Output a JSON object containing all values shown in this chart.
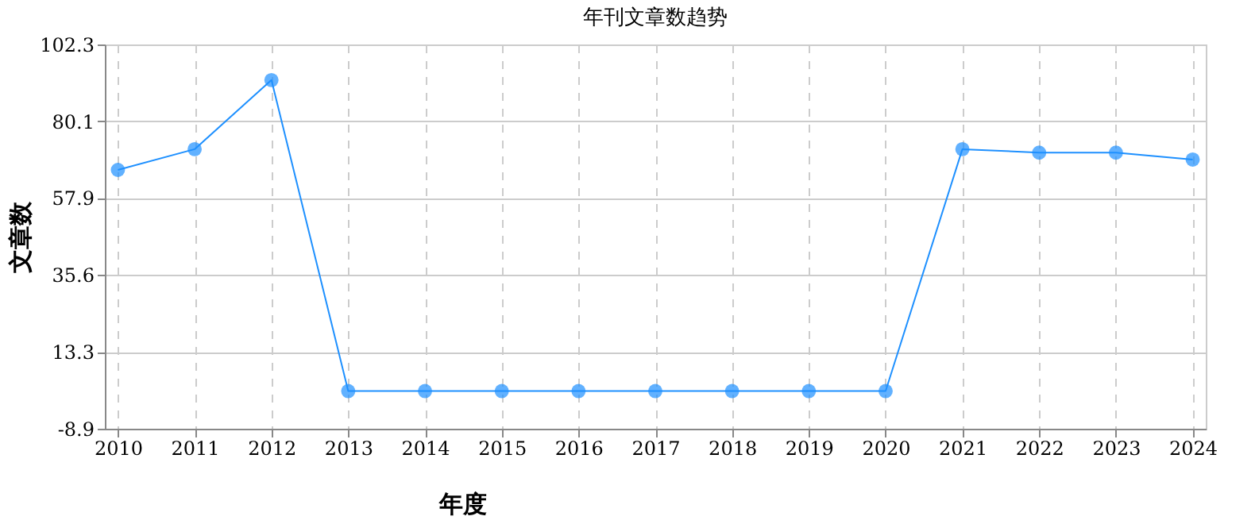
{
  "chart_data": {
    "type": "line",
    "title": "年刊文章数趋势",
    "xlabel": "年度",
    "ylabel": "文章数",
    "categories": [
      "2010",
      "2011",
      "2012",
      "2013",
      "2014",
      "2015",
      "2016",
      "2017",
      "2018",
      "2019",
      "2020",
      "2021",
      "2022",
      "2023",
      "2024"
    ],
    "series": [
      {
        "color": "#1e90ff",
        "values": [
          66,
          72,
          92,
          2,
          2,
          2,
          2,
          2,
          2,
          2,
          2,
          72,
          71,
          71,
          69
        ]
      }
    ],
    "ylim": [
      -8.9,
      102.3
    ],
    "yticks": [
      -8.9,
      13.3,
      35.6,
      57.9,
      80.1,
      102.3
    ],
    "grid": true,
    "marker": "circle",
    "line_style": "solid",
    "legend": false
  }
}
